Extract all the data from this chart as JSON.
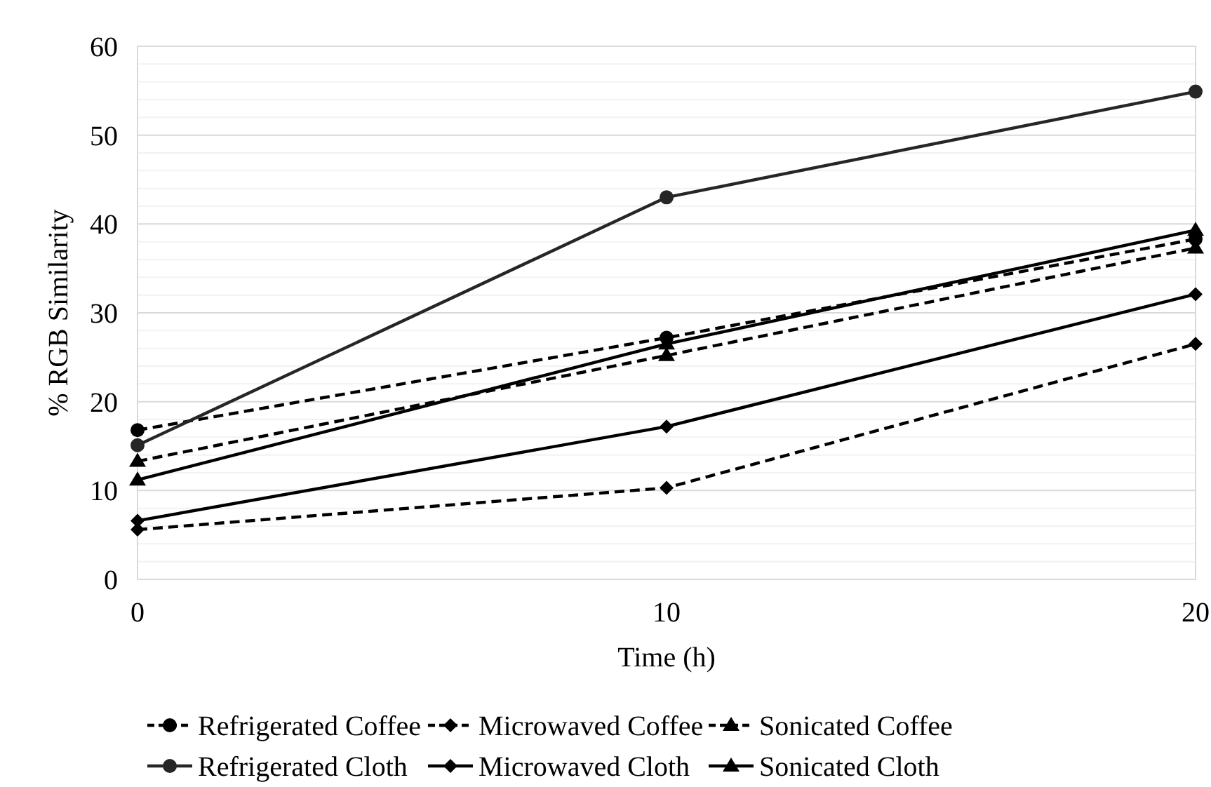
{
  "chart_data": {
    "type": "line",
    "xlabel": "Time (h)",
    "ylabel": "% RGB Similarity",
    "x": [
      0,
      10,
      20
    ],
    "xlim": [
      0,
      20
    ],
    "xticks": [
      0,
      10,
      20
    ],
    "ylim": [
      0,
      60
    ],
    "yticks": [
      0,
      {
        "value": 2,
        "label": null
      },
      {
        "value": 4,
        "label": null
      },
      {
        "value": 6,
        "label": null
      },
      {
        "value": 8,
        "label": null
      },
      10,
      {
        "value": 12,
        "label": null
      },
      {
        "value": 14,
        "label": null
      },
      {
        "value": 16,
        "label": null
      },
      {
        "value": 18,
        "label": null
      },
      20,
      {
        "value": 22,
        "label": null
      },
      {
        "value": 24,
        "label": null
      },
      {
        "value": 26,
        "label": null
      },
      {
        "value": 28,
        "label": null
      },
      30,
      {
        "value": 32,
        "label": null
      },
      {
        "value": 34,
        "label": null
      },
      {
        "value": 36,
        "label": null
      },
      {
        "value": 38,
        "label": null
      },
      40,
      {
        "value": 42,
        "label": null
      },
      {
        "value": 44,
        "label": null
      },
      {
        "value": 46,
        "label": null
      },
      {
        "value": 48,
        "label": null
      },
      50,
      {
        "value": 52,
        "label": null
      },
      {
        "value": 54,
        "label": null
      },
      {
        "value": 56,
        "label": null
      },
      {
        "value": 58,
        "label": null
      },
      60
    ],
    "grid": "y",
    "legend": "bottom",
    "series": [
      {
        "name": "Refrigerated Coffee",
        "color": "#000000",
        "marker": "circle",
        "line_style": "dashed",
        "values": [
          16.8,
          27.2,
          38.3
        ]
      },
      {
        "name": "Microwaved Coffee",
        "color": "#000000",
        "marker": "diamond",
        "line_style": "dashed",
        "values": [
          5.6,
          10.3,
          26.5
        ]
      },
      {
        "name": "Sonicated Coffee",
        "color": "#000000",
        "marker": "triangle",
        "line_style": "dashed",
        "values": [
          13.3,
          25.2,
          37.3
        ]
      },
      {
        "name": "Refrigerated Cloth",
        "color": "#262626",
        "marker": "circle",
        "line_style": "solid",
        "values": [
          15.1,
          43.0,
          54.9
        ]
      },
      {
        "name": "Microwaved Cloth",
        "color": "#000000",
        "marker": "diamond",
        "line_style": "solid",
        "values": [
          6.6,
          17.2,
          32.1
        ]
      },
      {
        "name": "Sonicated Cloth",
        "color": "#000000",
        "marker": "triangle",
        "line_style": "solid",
        "values": [
          11.2,
          26.5,
          39.3
        ]
      }
    ]
  }
}
